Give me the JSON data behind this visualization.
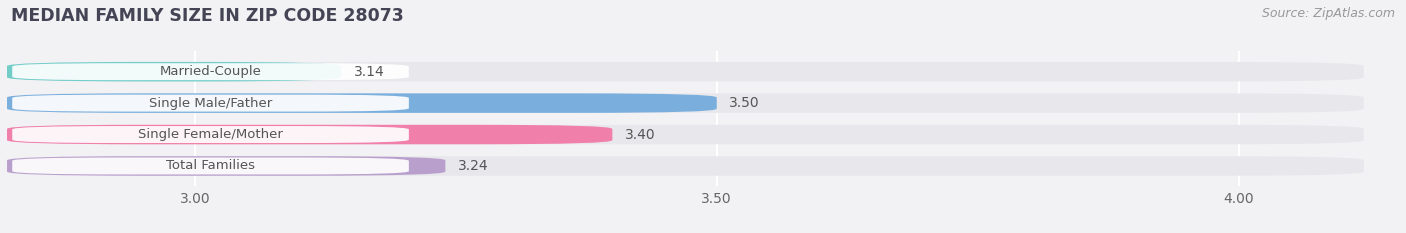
{
  "title": "MEDIAN FAMILY SIZE IN ZIP CODE 28073",
  "source": "Source: ZipAtlas.com",
  "categories": [
    "Married-Couple",
    "Single Male/Father",
    "Single Female/Mother",
    "Total Families"
  ],
  "values": [
    3.14,
    3.5,
    3.4,
    3.24
  ],
  "bar_colors": [
    "#72cdc8",
    "#7aaedd",
    "#f07faa",
    "#b89fcc"
  ],
  "track_color": "#e8e8ec",
  "xlim_left": 2.82,
  "xlim_right": 4.12,
  "xticks": [
    3.0,
    3.5,
    4.0
  ],
  "xtick_labels": [
    "3.00",
    "3.50",
    "4.00"
  ],
  "bar_height": 0.62,
  "background_color": "#f2f2f5",
  "title_fontsize": 12.5,
  "source_fontsize": 9,
  "tick_fontsize": 10,
  "value_fontsize": 10,
  "label_fontsize": 9.5,
  "grid_color": "#ffffff",
  "label_text_color": "#555555",
  "value_text_color": "#555555",
  "title_color": "#444455"
}
